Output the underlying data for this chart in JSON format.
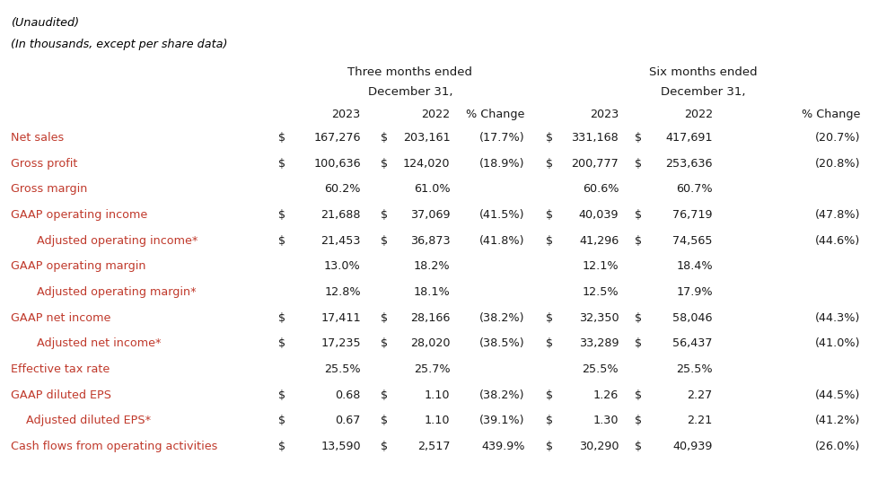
{
  "unaudited": "(Unaudited)",
  "in_thousands": "(In thousands, except per share data)",
  "rows": [
    {
      "label": "Net sales",
      "indent": 0,
      "d1": "$",
      "v1": "167,276",
      "d2": "$",
      "v2": "203,161",
      "p1": "(17.7%)",
      "d3": "$",
      "v3": "331,168",
      "d4": "$",
      "v4": "417,691",
      "p2": "(20.7%)"
    },
    {
      "label": "Gross profit",
      "indent": 0,
      "d1": "$",
      "v1": "100,636",
      "d2": "$",
      "v2": "124,020",
      "p1": "(18.9%)",
      "d3": "$",
      "v3": "200,777",
      "d4": "$",
      "v4": "253,636",
      "p2": "(20.8%)"
    },
    {
      "label": "Gross margin",
      "indent": 0,
      "d1": "",
      "v1": "60.2%",
      "d2": "",
      "v2": "61.0%",
      "p1": "",
      "d3": "",
      "v3": "60.6%",
      "d4": "",
      "v4": "60.7%",
      "p2": ""
    },
    {
      "label": "GAAP operating income",
      "indent": 0,
      "d1": "$",
      "v1": "21,688",
      "d2": "$",
      "v2": "37,069",
      "p1": "(41.5%)",
      "d3": "$",
      "v3": "40,039",
      "d4": "$",
      "v4": "76,719",
      "p2": "(47.8%)"
    },
    {
      "label": "Adjusted operating income*",
      "indent": 1,
      "d1": "$",
      "v1": "21,453",
      "d2": "$",
      "v2": "36,873",
      "p1": "(41.8%)",
      "d3": "$",
      "v3": "41,296",
      "d4": "$",
      "v4": "74,565",
      "p2": "(44.6%)"
    },
    {
      "label": "GAAP operating margin",
      "indent": 0,
      "d1": "",
      "v1": "13.0%",
      "d2": "",
      "v2": "18.2%",
      "p1": "",
      "d3": "",
      "v3": "12.1%",
      "d4": "",
      "v4": "18.4%",
      "p2": ""
    },
    {
      "label": "Adjusted operating margin*",
      "indent": 1,
      "d1": "",
      "v1": "12.8%",
      "d2": "",
      "v2": "18.1%",
      "p1": "",
      "d3": "",
      "v3": "12.5%",
      "d4": "",
      "v4": "17.9%",
      "p2": ""
    },
    {
      "label": "GAAP net income",
      "indent": 0,
      "d1": "$",
      "v1": "17,411",
      "d2": "$",
      "v2": "28,166",
      "p1": "(38.2%)",
      "d3": "$",
      "v3": "32,350",
      "d4": "$",
      "v4": "58,046",
      "p2": "(44.3%)"
    },
    {
      "label": "Adjusted net income*",
      "indent": 1,
      "d1": "$",
      "v1": "17,235",
      "d2": "$",
      "v2": "28,020",
      "p1": "(38.5%)",
      "d3": "$",
      "v3": "33,289",
      "d4": "$",
      "v4": "56,437",
      "p2": "(41.0%)"
    },
    {
      "label": "Effective tax rate",
      "indent": 0,
      "d1": "",
      "v1": "25.5%",
      "d2": "",
      "v2": "25.7%",
      "p1": "",
      "d3": "",
      "v3": "25.5%",
      "d4": "",
      "v4": "25.5%",
      "p2": ""
    },
    {
      "label": "GAAP diluted EPS",
      "indent": 0,
      "d1": "$",
      "v1": "0.68",
      "d2": "$",
      "v2": "1.10",
      "p1": "(38.2%)",
      "d3": "$",
      "v3": "1.26",
      "d4": "$",
      "v4": "2.27",
      "p2": "(44.5%)"
    },
    {
      "label": "Adjusted diluted EPS*",
      "indent": 2,
      "d1": "$",
      "v1": "0.67",
      "d2": "$",
      "v2": "1.10",
      "p1": "(39.1%)",
      "d3": "$",
      "v3": "1.30",
      "d4": "$",
      "v4": "2.21",
      "p2": "(41.2%)"
    },
    {
      "label": "Cash flows from operating activities",
      "indent": 0,
      "d1": "$",
      "v1": "13,590",
      "d2": "$",
      "v2": "2,517",
      "p1": "439.9%",
      "d3": "$",
      "v3": "30,290",
      "d4": "$",
      "v4": "40,939",
      "p2": "(26.0%)"
    }
  ],
  "label_color": "#c0392b",
  "value_color": "#1a1a1a",
  "header_color": "#1a1a1a",
  "bg_color": "#ffffff",
  "font_size": 9.2,
  "header_font_size": 9.5
}
